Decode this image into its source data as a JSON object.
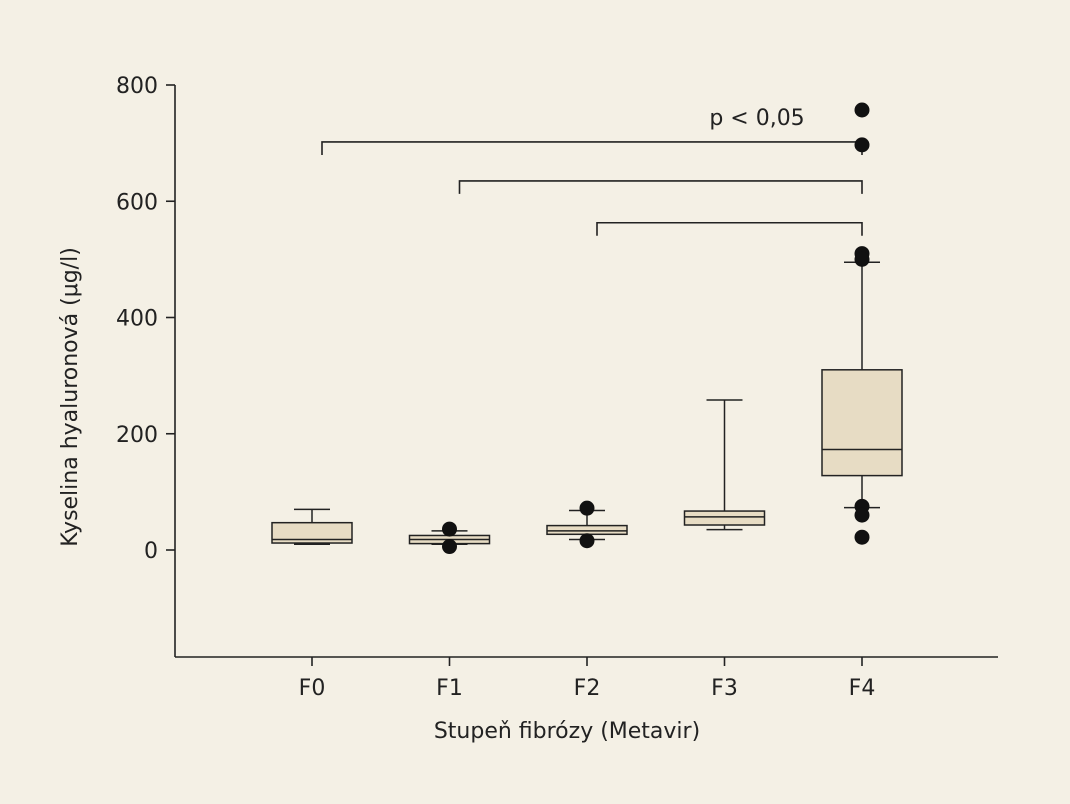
{
  "colors": {
    "background": "#f4f0e5",
    "box_fill": "#e7dcc4",
    "stroke": "#222222",
    "outlier": "#111111"
  },
  "chart_data": {
    "type": "box",
    "xlabel": "Stupeň fibrózy (Metavir)",
    "ylabel": "Kyselina hyaluronová (μg/l)",
    "ylim": [
      -180,
      800
    ],
    "yticks": [
      800,
      600,
      400,
      200,
      0
    ],
    "ytick_labels": [
      "800",
      "600",
      "400",
      "200",
      "0"
    ],
    "categories": [
      "F0",
      "F1",
      "F2",
      "F3",
      "F4"
    ],
    "boxes": [
      {
        "category": "F0",
        "whisker_low": 10,
        "q1": 12,
        "median": 18,
        "q3": 47,
        "whisker_high": 70,
        "outliers": []
      },
      {
        "category": "F1",
        "whisker_low": 10,
        "q1": 11,
        "median": 18,
        "q3": 25,
        "whisker_high": 33,
        "outliers": [
          36,
          6
        ]
      },
      {
        "category": "F2",
        "whisker_low": 18,
        "q1": 27,
        "median": 33,
        "q3": 42,
        "whisker_high": 68,
        "outliers": [
          72,
          16
        ]
      },
      {
        "category": "F3",
        "whisker_low": 35,
        "q1": 43,
        "median": 57,
        "q3": 67,
        "whisker_high": 258,
        "outliers": []
      },
      {
        "category": "F4",
        "whisker_low": 73,
        "q1": 128,
        "median": 173,
        "q3": 310,
        "whisker_high": 495,
        "outliers": [
          757,
          697,
          510,
          500,
          75,
          60,
          22
        ]
      }
    ],
    "significance": {
      "label": "p < 0,05",
      "brackets": [
        {
          "from": "F0",
          "to": "F4",
          "y": 702
        },
        {
          "from": "F1",
          "to": "F4",
          "y": 635
        },
        {
          "from": "F2",
          "to": "F4",
          "y": 563
        }
      ]
    },
    "grid": false,
    "legend": "none"
  }
}
